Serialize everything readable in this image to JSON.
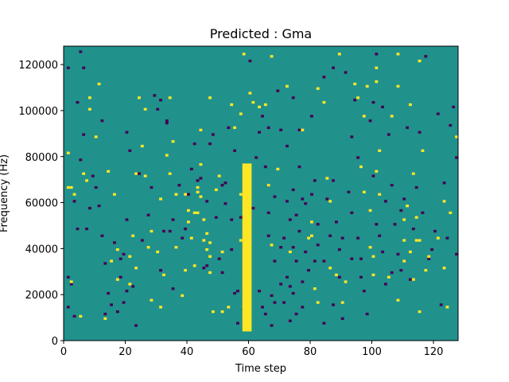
{
  "chart_data": {
    "type": "heatmap",
    "title": "Predicted : Gma",
    "xlabel": "Time step",
    "ylabel": "Frequency (Hz)",
    "xlim": [
      0,
      128
    ],
    "ylim": [
      0,
      128000
    ],
    "xticks": [
      0,
      20,
      40,
      60,
      80,
      100,
      120
    ],
    "yticks": [
      0,
      20000,
      40000,
      60000,
      80000,
      100000,
      120000
    ],
    "grid": false,
    "legend": "none",
    "colormap": {
      "background": "#21918c",
      "low": "#440154",
      "high": "#fde725"
    },
    "cells_high": [
      [
        1,
        66000
      ],
      [
        1,
        81000
      ],
      [
        2,
        25000
      ],
      [
        2,
        66000
      ],
      [
        3,
        63000
      ],
      [
        5,
        10000
      ],
      [
        6,
        72000
      ],
      [
        7,
        69000
      ],
      [
        8,
        100000
      ],
      [
        8,
        105000
      ],
      [
        10,
        88000
      ],
      [
        11,
        111000
      ],
      [
        13,
        9000
      ],
      [
        14,
        73000
      ],
      [
        15,
        34000
      ],
      [
        16,
        63000
      ],
      [
        17,
        39000
      ],
      [
        17,
        26000
      ],
      [
        21,
        36000
      ],
      [
        21,
        24000
      ],
      [
        22,
        45000
      ],
      [
        23,
        31000
      ],
      [
        23,
        72000
      ],
      [
        24,
        105000
      ],
      [
        25,
        84000
      ],
      [
        26,
        71000
      ],
      [
        26,
        100000
      ],
      [
        27,
        40000
      ],
      [
        28,
        17000
      ],
      [
        28,
        47000
      ],
      [
        30,
        38000
      ],
      [
        31,
        14000
      ],
      [
        31,
        61000
      ],
      [
        32,
        28000
      ],
      [
        33,
        80000
      ],
      [
        34,
        72000
      ],
      [
        34,
        105000
      ],
      [
        35,
        86000
      ],
      [
        36,
        40000
      ],
      [
        36,
        63000
      ],
      [
        38,
        19000
      ],
      [
        39,
        63000
      ],
      [
        39,
        30000
      ],
      [
        40,
        51000
      ],
      [
        40,
        56000
      ],
      [
        41,
        44000
      ],
      [
        42,
        55000
      ],
      [
        42,
        32000
      ],
      [
        43,
        66000
      ],
      [
        43,
        64000
      ],
      [
        43,
        55000
      ],
      [
        44,
        91000
      ],
      [
        44,
        76000
      ],
      [
        44,
        62000
      ],
      [
        45,
        52000
      ],
      [
        45,
        43000
      ],
      [
        46,
        46000
      ],
      [
        46,
        39000
      ],
      [
        47,
        42000
      ],
      [
        47,
        36000
      ],
      [
        47,
        29000
      ],
      [
        48,
        12000
      ],
      [
        47,
        105000
      ],
      [
        49,
        65000
      ],
      [
        50,
        71000
      ],
      [
        51,
        38000
      ],
      [
        51,
        12000
      ],
      [
        53,
        14000
      ],
      [
        54,
        102000
      ],
      [
        55,
        92000
      ],
      [
        57,
        43000
      ],
      [
        58,
        71000
      ],
      [
        57,
        98000
      ],
      [
        58,
        124000
      ],
      [
        60,
        107000
      ],
      [
        61,
        103000
      ],
      [
        63,
        101000
      ],
      [
        65,
        102000
      ],
      [
        66,
        67000
      ],
      [
        67,
        41000
      ],
      [
        69,
        74000
      ],
      [
        72,
        110000
      ],
      [
        73,
        38000
      ],
      [
        77,
        91000
      ],
      [
        79,
        44000
      ],
      [
        80,
        51000
      ],
      [
        80,
        45000
      ],
      [
        81,
        22000
      ],
      [
        82,
        109000
      ],
      [
        82,
        16000
      ],
      [
        84,
        103000
      ],
      [
        85,
        70000
      ],
      [
        86,
        60000
      ],
      [
        86,
        31000
      ],
      [
        88,
        28000
      ],
      [
        90,
        16000
      ],
      [
        89,
        124000
      ],
      [
        91,
        25000
      ],
      [
        94,
        111000
      ],
      [
        95,
        105000
      ],
      [
        96,
        75000
      ],
      [
        97,
        97000
      ],
      [
        97,
        64000
      ],
      [
        98,
        110000
      ],
      [
        99,
        56000
      ],
      [
        99,
        40000
      ],
      [
        100,
        36000
      ],
      [
        100,
        28000
      ],
      [
        101,
        73000
      ],
      [
        102,
        63000
      ],
      [
        102,
        82000
      ],
      [
        105,
        27000
      ],
      [
        106,
        97000
      ],
      [
        108,
        110000
      ],
      [
        108,
        17000
      ],
      [
        110,
        52000
      ],
      [
        110,
        43000
      ],
      [
        110,
        34000
      ],
      [
        111,
        58000
      ],
      [
        112,
        38000
      ],
      [
        112,
        102000
      ],
      [
        113,
        26000
      ],
      [
        113,
        72000
      ],
      [
        114,
        53000
      ],
      [
        114,
        43000
      ],
      [
        115,
        43000
      ],
      [
        115,
        12000
      ],
      [
        116,
        82000
      ],
      [
        117,
        30000
      ],
      [
        118,
        36000
      ],
      [
        121,
        44000
      ],
      [
        123,
        31000
      ],
      [
        123,
        60000
      ],
      [
        124,
        14000
      ],
      [
        125,
        55000
      ],
      [
        127,
        88000
      ],
      [
        115,
        121000
      ],
      [
        108,
        124000
      ],
      [
        101,
        118000
      ],
      [
        101,
        112000
      ],
      [
        67,
        123000
      ],
      [
        57,
        63000
      ],
      [
        58,
        14000
      ]
    ],
    "cells_low": [
      [
        1,
        14000
      ],
      [
        1,
        27000
      ],
      [
        1,
        118000
      ],
      [
        2,
        24000
      ],
      [
        3,
        10000
      ],
      [
        3,
        60000
      ],
      [
        4,
        48000
      ],
      [
        5,
        78000
      ],
      [
        5,
        125000
      ],
      [
        6,
        89000
      ],
      [
        7,
        48000
      ],
      [
        8,
        57000
      ],
      [
        9,
        71000
      ],
      [
        10,
        66000
      ],
      [
        11,
        58000
      ],
      [
        12,
        45000
      ],
      [
        13,
        33000
      ],
      [
        13,
        11000
      ],
      [
        14,
        20000
      ],
      [
        15,
        15000
      ],
      [
        16,
        42000
      ],
      [
        17,
        12000
      ],
      [
        18,
        27000
      ],
      [
        18,
        35000
      ],
      [
        19,
        16000
      ],
      [
        20,
        52000
      ],
      [
        20,
        21000
      ],
      [
        21,
        82000
      ],
      [
        22,
        23000
      ],
      [
        23,
        6000
      ],
      [
        24,
        72000
      ],
      [
        25,
        43000
      ],
      [
        27,
        54000
      ],
      [
        28,
        66000
      ],
      [
        29,
        106000
      ],
      [
        30,
        100000
      ],
      [
        31,
        30000
      ],
      [
        32,
        47000
      ],
      [
        33,
        95000
      ],
      [
        34,
        47000
      ],
      [
        35,
        52000
      ],
      [
        37,
        67000
      ],
      [
        38,
        44000
      ],
      [
        39,
        48000
      ],
      [
        40,
        63000
      ],
      [
        41,
        74000
      ],
      [
        42,
        85000
      ],
      [
        43,
        69000
      ],
      [
        44,
        70000
      ],
      [
        44,
        91000
      ],
      [
        45,
        31000
      ],
      [
        46,
        60000
      ],
      [
        46,
        32000
      ],
      [
        47,
        85000
      ],
      [
        48,
        89000
      ],
      [
        49,
        53000
      ],
      [
        50,
        35000
      ],
      [
        51,
        29000
      ],
      [
        51,
        67000
      ],
      [
        52,
        59000
      ],
      [
        53,
        92000
      ],
      [
        54,
        52000
      ],
      [
        54,
        39000
      ],
      [
        55,
        20000
      ],
      [
        56,
        21000
      ],
      [
        56,
        7000
      ],
      [
        57,
        53000
      ],
      [
        58,
        13000
      ],
      [
        59,
        8000
      ],
      [
        63,
        21000
      ],
      [
        64,
        14000
      ],
      [
        64,
        97000
      ],
      [
        65,
        75000
      ],
      [
        65,
        11000
      ],
      [
        66,
        92000
      ],
      [
        66,
        67000
      ],
      [
        66,
        45000
      ],
      [
        66,
        55000
      ],
      [
        67,
        19000
      ],
      [
        67,
        6000
      ],
      [
        68,
        16000
      ],
      [
        68,
        34000
      ],
      [
        68,
        62000
      ],
      [
        69,
        108000
      ],
      [
        70,
        91000
      ],
      [
        70,
        40000
      ],
      [
        70,
        24000
      ],
      [
        71,
        16000
      ],
      [
        71,
        44000
      ],
      [
        72,
        60000
      ],
      [
        72,
        27000
      ],
      [
        72,
        84000
      ],
      [
        73,
        23000
      ],
      [
        73,
        52000
      ],
      [
        73,
        8000
      ],
      [
        74,
        65000
      ],
      [
        74,
        40000
      ],
      [
        74,
        20000
      ],
      [
        74,
        105000
      ],
      [
        75,
        54000
      ],
      [
        75,
        34000
      ],
      [
        75,
        11000
      ],
      [
        76,
        91000
      ],
      [
        76,
        75000
      ],
      [
        76,
        47000
      ],
      [
        77,
        61000
      ],
      [
        77,
        25000
      ],
      [
        77,
        14000
      ],
      [
        78,
        59000
      ],
      [
        78,
        38000
      ],
      [
        79,
        30000
      ],
      [
        80,
        63000
      ],
      [
        80,
        97000
      ],
      [
        81,
        69000
      ],
      [
        81,
        34000
      ],
      [
        82,
        50000
      ],
      [
        82,
        41000
      ],
      [
        84,
        34000
      ],
      [
        84,
        7000
      ],
      [
        85,
        61000
      ],
      [
        86,
        45000
      ],
      [
        87,
        118000
      ],
      [
        87,
        69000
      ],
      [
        87,
        15000
      ],
      [
        88,
        51000
      ],
      [
        89,
        27000
      ],
      [
        89,
        39000
      ],
      [
        90,
        9000
      ],
      [
        91,
        116000
      ],
      [
        92,
        64000
      ],
      [
        93,
        55000
      ],
      [
        93,
        35000
      ],
      [
        94,
        104000
      ],
      [
        95,
        79000
      ],
      [
        95,
        44000
      ],
      [
        96,
        27000
      ],
      [
        97,
        21000
      ],
      [
        98,
        11000
      ],
      [
        99,
        95000
      ],
      [
        100,
        103000
      ],
      [
        100,
        71000
      ],
      [
        101,
        50000
      ],
      [
        102,
        45000
      ],
      [
        103,
        101000
      ],
      [
        103,
        38000
      ],
      [
        104,
        60000
      ],
      [
        104,
        24000
      ],
      [
        105,
        89000
      ],
      [
        106,
        29000
      ],
      [
        106,
        67000
      ],
      [
        107,
        50000
      ],
      [
        108,
        37000
      ],
      [
        109,
        30000
      ],
      [
        109,
        56000
      ],
      [
        110,
        61000
      ],
      [
        111,
        92000
      ],
      [
        112,
        26000
      ],
      [
        113,
        48000
      ],
      [
        114,
        66000
      ],
      [
        115,
        90000
      ],
      [
        116,
        55000
      ],
      [
        117,
        123000
      ],
      [
        118,
        35000
      ],
      [
        119,
        39000
      ],
      [
        120,
        47000
      ],
      [
        121,
        98000
      ],
      [
        122,
        15000
      ],
      [
        123,
        68000
      ],
      [
        124,
        44000
      ],
      [
        125,
        93000
      ],
      [
        126,
        101000
      ],
      [
        127,
        37000
      ],
      [
        127,
        79000
      ],
      [
        101,
        124000
      ],
      [
        96,
        35000
      ],
      [
        93,
        88000
      ],
      [
        90,
        44000
      ],
      [
        84,
        114000
      ],
      [
        61,
        57000
      ],
      [
        60,
        121000
      ],
      [
        12,
        95000
      ],
      [
        4,
        103000
      ],
      [
        6,
        118000
      ],
      [
        19,
        37000
      ],
      [
        20,
        90000
      ],
      [
        31,
        104000
      ],
      [
        33,
        94000
      ],
      [
        35,
        22000
      ],
      [
        52,
        68000
      ],
      [
        55,
        82000
      ],
      [
        62,
        79000
      ],
      [
        63,
        90000
      ]
    ],
    "band": {
      "x_start": 58,
      "x_end": 61,
      "y_start": 4000,
      "y_end": 77000
    }
  }
}
